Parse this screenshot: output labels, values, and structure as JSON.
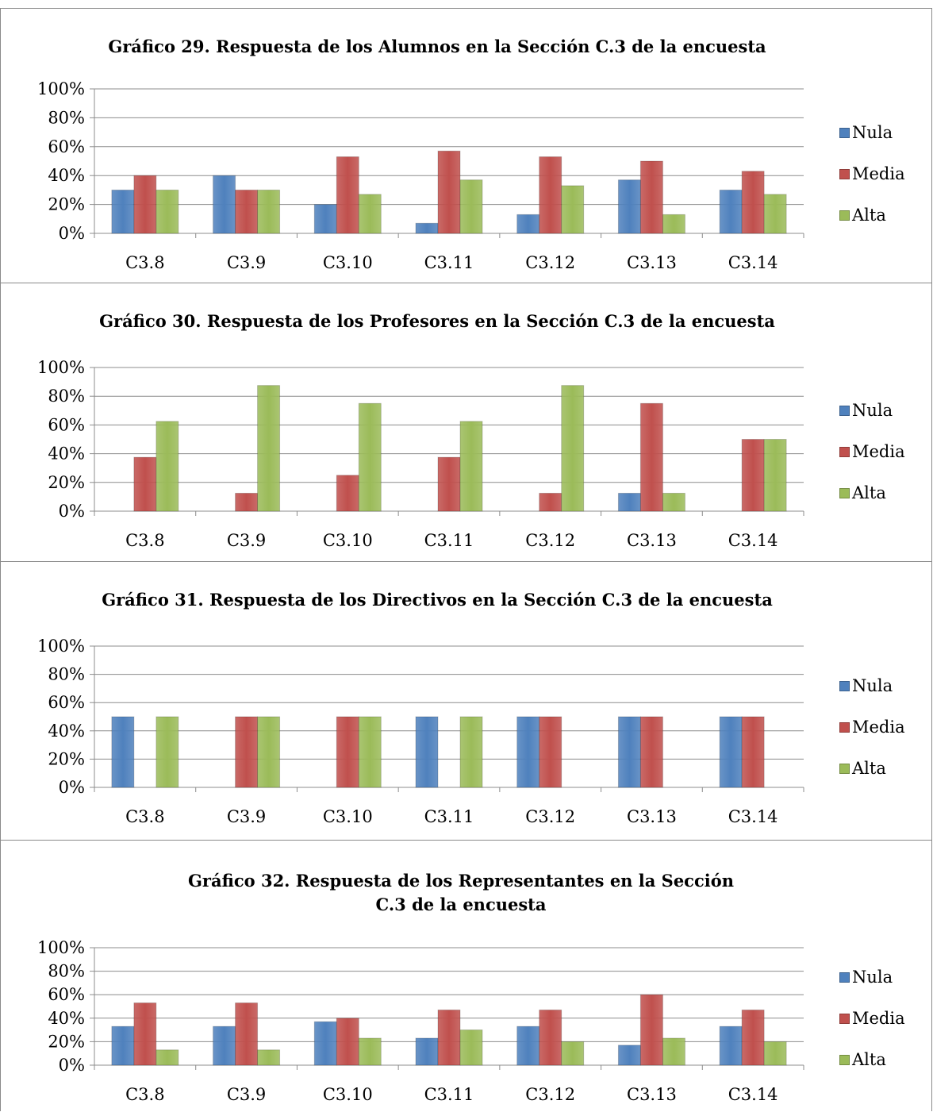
{
  "colors": {
    "Nula": "#4f81bd",
    "Media": "#c0504d",
    "Alta": "#9bbb59"
  },
  "chart_data": [
    {
      "type": "bar",
      "title": "Gráfico 29.   Respuesta de los Alumnos en la Sección C.3 de la encuesta",
      "categories": [
        "C3.8",
        "C3.9",
        "C3.10",
        "C3.11",
        "C3.12",
        "C3.13",
        "C3.14"
      ],
      "series": [
        {
          "name": "Nula",
          "values": [
            30,
            40,
            20,
            7,
            13,
            37,
            30
          ]
        },
        {
          "name": "Media",
          "values": [
            40,
            30,
            53,
            57,
            53,
            50,
            43
          ]
        },
        {
          "name": "Alta",
          "values": [
            30,
            30,
            27,
            37,
            33,
            13,
            27
          ]
        }
      ],
      "ylim": [
        0,
        100
      ],
      "yticks": [
        "0%",
        "20%",
        "40%",
        "60%",
        "80%",
        "100%"
      ],
      "grid": true,
      "legend": "right"
    },
    {
      "type": "bar",
      "title": "Gráfico 30.   Respuesta de los Profesores en la Sección C.3 de la encuesta",
      "categories": [
        "C3.8",
        "C3.9",
        "C3.10",
        "C3.11",
        "C3.12",
        "C3.13",
        "C3.14"
      ],
      "series": [
        {
          "name": "Nula",
          "values": [
            0,
            0,
            0,
            0,
            0,
            12.5,
            0
          ]
        },
        {
          "name": "Media",
          "values": [
            37.5,
            12.5,
            25,
            37.5,
            12.5,
            75,
            50
          ]
        },
        {
          "name": "Alta",
          "values": [
            62.5,
            87.5,
            75,
            62.5,
            87.5,
            12.5,
            50
          ]
        }
      ],
      "ylim": [
        0,
        100
      ],
      "yticks": [
        "0%",
        "20%",
        "40%",
        "60%",
        "80%",
        "100%"
      ],
      "grid": true,
      "legend": "right"
    },
    {
      "type": "bar",
      "title": "Gráfico 31.   Respuesta de los Directivos  en la Sección C.3 de la encuesta",
      "categories": [
        "C3.8",
        "C3.9",
        "C3.10",
        "C3.11",
        "C3.12",
        "C3.13",
        "C3.14"
      ],
      "series": [
        {
          "name": "Nula",
          "values": [
            50,
            0,
            0,
            50,
            50,
            50,
            50
          ]
        },
        {
          "name": "Media",
          "values": [
            0,
            50,
            50,
            0,
            50,
            50,
            50
          ]
        },
        {
          "name": "Alta",
          "values": [
            50,
            50,
            50,
            50,
            0,
            0,
            0
          ]
        }
      ],
      "ylim": [
        0,
        100
      ],
      "yticks": [
        "0%",
        "20%",
        "40%",
        "60%",
        "80%",
        "100%"
      ],
      "grid": true,
      "legend": "right"
    },
    {
      "type": "bar",
      "title": "Gráfico 32.   Respuesta de los Representantes en la Sección C.3 de la encuesta",
      "categories": [
        "C3.8",
        "C3.9",
        "C3.10",
        "C3.11",
        "C3.12",
        "C3.13",
        "C3.14"
      ],
      "series": [
        {
          "name": "Nula",
          "values": [
            33,
            33,
            37,
            23,
            33,
            17,
            33
          ]
        },
        {
          "name": "Media",
          "values": [
            53,
            53,
            40,
            47,
            47,
            60,
            47
          ]
        },
        {
          "name": "Alta",
          "values": [
            13,
            13,
            23,
            30,
            20,
            23,
            20
          ]
        }
      ],
      "ylim": [
        0,
        100
      ],
      "yticks": [
        "0%",
        "20%",
        "40%",
        "60%",
        "80%",
        "100%"
      ],
      "grid": true,
      "legend": "right"
    }
  ]
}
